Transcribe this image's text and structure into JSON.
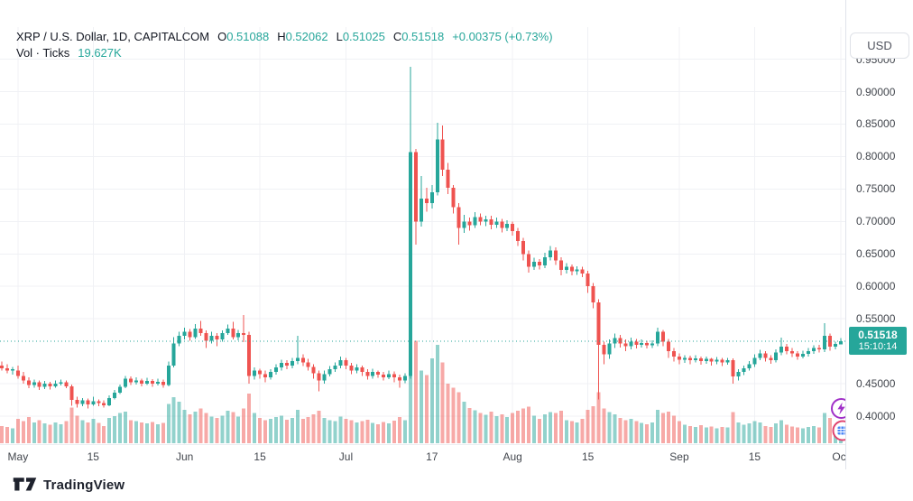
{
  "header": {
    "symbol": "XRP / U.S. Dollar, 1D, CAPITALCOM",
    "ohlc": {
      "o_label": "O",
      "o": "0.51088",
      "h_label": "H",
      "h": "0.52062",
      "l_label": "L",
      "l": "0.51025",
      "c_label": "C",
      "c": "0.51518",
      "change": "+0.00375 (+0.73%)"
    },
    "volume_row": {
      "label": "Vol · Ticks",
      "value": "19.627K"
    }
  },
  "right_axis": {
    "currency_button": "USD",
    "price_labels": [
      {
        "value": 0.95,
        "label": "0.95000"
      },
      {
        "value": 0.9,
        "label": "0.90000"
      },
      {
        "value": 0.85,
        "label": "0.85000"
      },
      {
        "value": 0.8,
        "label": "0.80000"
      },
      {
        "value": 0.75,
        "label": "0.75000"
      },
      {
        "value": 0.7,
        "label": "0.70000"
      },
      {
        "value": 0.65,
        "label": "0.65000"
      },
      {
        "value": 0.6,
        "label": "0.60000"
      },
      {
        "value": 0.55,
        "label": "0.55000"
      },
      {
        "value": 0.45,
        "label": "0.45000"
      },
      {
        "value": 0.4,
        "label": "0.40000"
      }
    ],
    "badge": {
      "price": "0.51518",
      "time": "15:10:14"
    }
  },
  "time_axis": {
    "labels": [
      {
        "label": "May",
        "index": 3
      },
      {
        "label": "15",
        "index": 17
      },
      {
        "label": "Jun",
        "index": 34
      },
      {
        "label": "15",
        "index": 48
      },
      {
        "label": "Jul",
        "index": 64
      },
      {
        "label": "17",
        "index": 80
      },
      {
        "label": "Aug",
        "index": 95
      },
      {
        "label": "15",
        "index": 109
      },
      {
        "label": "Sep",
        "index": 126
      },
      {
        "label": "15",
        "index": 140
      },
      {
        "label": "Oct",
        "index": 156
      }
    ]
  },
  "footer": {
    "brand": "TradingView"
  },
  "colors": {
    "up": "#26a69a",
    "down": "#ef5350",
    "vol_up": "rgba(38,166,154,0.5)",
    "vol_down": "rgba(239,83,80,0.5)",
    "grid": "#f0f1f5",
    "axis_border": "#e0e3eb",
    "axis_text": "#42464d",
    "title_text": "#131722",
    "accent": "#26a69a",
    "badge_bg": "#26a69a",
    "bubble_flash": "#a030c8",
    "bubble_events_ring": "#e0426f",
    "bubble_events_fill": "#4a86f7"
  },
  "chart_data": {
    "type": "candlestick",
    "symbol": "XRP/USD",
    "interval": "1D",
    "exchange": "CAPITALCOM",
    "ylabel": "USD",
    "ylim": [
      0.357,
      1.0
    ],
    "x_range": "late Apr to early Oct, daily bars",
    "grid": true,
    "last_bar": {
      "open": 0.51088,
      "high": 0.52062,
      "low": 0.51025,
      "close": 0.51518,
      "change": 0.00375,
      "change_pct": 0.73,
      "volume": "19.627K",
      "time": "15:10:14"
    },
    "fields": [
      "open",
      "high",
      "low",
      "close",
      "volume_k"
    ],
    "candles": [
      [
        0.478,
        0.484,
        0.47,
        0.474,
        30
      ],
      [
        0.474,
        0.48,
        0.466,
        0.47,
        28
      ],
      [
        0.47,
        0.476,
        0.464,
        0.472,
        26
      ],
      [
        0.47,
        0.478,
        0.458,
        0.462,
        42
      ],
      [
        0.462,
        0.468,
        0.45,
        0.455,
        38
      ],
      [
        0.455,
        0.46,
        0.443,
        0.448,
        45
      ],
      [
        0.448,
        0.456,
        0.444,
        0.452,
        36
      ],
      [
        0.452,
        0.455,
        0.44,
        0.445,
        40
      ],
      [
        0.445,
        0.454,
        0.442,
        0.45,
        34
      ],
      [
        0.45,
        0.453,
        0.441,
        0.446,
        32
      ],
      [
        0.446,
        0.455,
        0.444,
        0.45,
        36
      ],
      [
        0.45,
        0.456,
        0.447,
        0.452,
        33
      ],
      [
        0.452,
        0.455,
        0.443,
        0.446,
        38
      ],
      [
        0.446,
        0.449,
        0.416,
        0.425,
        62
      ],
      [
        0.425,
        0.43,
        0.413,
        0.419,
        48
      ],
      [
        0.419,
        0.428,
        0.415,
        0.424,
        40
      ],
      [
        0.424,
        0.427,
        0.412,
        0.418,
        36
      ],
      [
        0.418,
        0.43,
        0.416,
        0.423,
        42
      ],
      [
        0.423,
        0.426,
        0.415,
        0.42,
        35
      ],
      [
        0.42,
        0.424,
        0.413,
        0.417,
        30
      ],
      [
        0.417,
        0.432,
        0.415,
        0.428,
        44
      ],
      [
        0.428,
        0.44,
        0.426,
        0.436,
        47
      ],
      [
        0.436,
        0.449,
        0.434,
        0.445,
        52
      ],
      [
        0.445,
        0.462,
        0.443,
        0.458,
        55
      ],
      [
        0.458,
        0.461,
        0.448,
        0.452,
        40
      ],
      [
        0.452,
        0.46,
        0.449,
        0.455,
        38
      ],
      [
        0.455,
        0.458,
        0.446,
        0.45,
        36
      ],
      [
        0.45,
        0.459,
        0.448,
        0.454,
        34
      ],
      [
        0.454,
        0.457,
        0.445,
        0.45,
        37
      ],
      [
        0.45,
        0.458,
        0.447,
        0.453,
        33
      ],
      [
        0.453,
        0.456,
        0.444,
        0.448,
        35
      ],
      [
        0.448,
        0.484,
        0.446,
        0.478,
        68
      ],
      [
        0.478,
        0.522,
        0.475,
        0.512,
        80
      ],
      [
        0.512,
        0.53,
        0.508,
        0.524,
        72
      ],
      [
        0.524,
        0.536,
        0.518,
        0.53,
        58
      ],
      [
        0.53,
        0.534,
        0.516,
        0.522,
        50
      ],
      [
        0.522,
        0.542,
        0.519,
        0.535,
        55
      ],
      [
        0.535,
        0.547,
        0.524,
        0.528,
        60
      ],
      [
        0.528,
        0.532,
        0.505,
        0.516,
        52
      ],
      [
        0.516,
        0.53,
        0.512,
        0.524,
        46
      ],
      [
        0.524,
        0.528,
        0.508,
        0.518,
        44
      ],
      [
        0.518,
        0.532,
        0.515,
        0.528,
        48
      ],
      [
        0.528,
        0.541,
        0.525,
        0.535,
        56
      ],
      [
        0.535,
        0.545,
        0.518,
        0.522,
        54
      ],
      [
        0.522,
        0.533,
        0.517,
        0.528,
        46
      ],
      [
        0.528,
        0.556,
        0.514,
        0.525,
        60
      ],
      [
        0.525,
        0.53,
        0.45,
        0.462,
        86
      ],
      [
        0.462,
        0.475,
        0.456,
        0.47,
        52
      ],
      [
        0.47,
        0.473,
        0.458,
        0.465,
        44
      ],
      [
        0.465,
        0.47,
        0.452,
        0.46,
        40
      ],
      [
        0.46,
        0.472,
        0.456,
        0.468,
        42
      ],
      [
        0.468,
        0.48,
        0.464,
        0.475,
        45
      ],
      [
        0.475,
        0.487,
        0.47,
        0.482,
        48
      ],
      [
        0.482,
        0.486,
        0.472,
        0.478,
        41
      ],
      [
        0.478,
        0.49,
        0.474,
        0.485,
        44
      ],
      [
        0.485,
        0.524,
        0.48,
        0.49,
        58
      ],
      [
        0.49,
        0.495,
        0.477,
        0.483,
        42
      ],
      [
        0.483,
        0.488,
        0.47,
        0.476,
        45
      ],
      [
        0.476,
        0.48,
        0.458,
        0.466,
        50
      ],
      [
        0.466,
        0.47,
        0.438,
        0.455,
        56
      ],
      [
        0.455,
        0.47,
        0.45,
        0.465,
        44
      ],
      [
        0.465,
        0.477,
        0.461,
        0.472,
        40
      ],
      [
        0.472,
        0.483,
        0.468,
        0.478,
        38
      ],
      [
        0.478,
        0.492,
        0.474,
        0.486,
        46
      ],
      [
        0.486,
        0.49,
        0.472,
        0.478,
        42
      ],
      [
        0.478,
        0.482,
        0.465,
        0.47,
        40
      ],
      [
        0.47,
        0.48,
        0.466,
        0.475,
        36
      ],
      [
        0.475,
        0.478,
        0.462,
        0.468,
        38
      ],
      [
        0.468,
        0.472,
        0.456,
        0.462,
        41
      ],
      [
        0.462,
        0.473,
        0.458,
        0.468,
        35
      ],
      [
        0.468,
        0.47,
        0.459,
        0.464,
        33
      ],
      [
        0.464,
        0.468,
        0.455,
        0.46,
        37
      ],
      [
        0.46,
        0.47,
        0.457,
        0.465,
        34
      ],
      [
        0.465,
        0.469,
        0.452,
        0.46,
        39
      ],
      [
        0.46,
        0.464,
        0.444,
        0.455,
        45
      ],
      [
        0.455,
        0.466,
        0.451,
        0.462,
        40
      ],
      [
        0.462,
        0.938,
        0.458,
        0.807,
        170
      ],
      [
        0.807,
        0.812,
        0.664,
        0.7,
        177
      ],
      [
        0.7,
        0.77,
        0.692,
        0.735,
        126
      ],
      [
        0.735,
        0.752,
        0.715,
        0.728,
        118
      ],
      [
        0.728,
        0.756,
        0.72,
        0.745,
        147
      ],
      [
        0.745,
        0.852,
        0.74,
        0.826,
        170
      ],
      [
        0.826,
        0.848,
        0.77,
        0.78,
        140
      ],
      [
        0.78,
        0.79,
        0.742,
        0.752,
        103
      ],
      [
        0.752,
        0.756,
        0.712,
        0.722,
        96
      ],
      [
        0.722,
        0.728,
        0.664,
        0.69,
        88
      ],
      [
        0.69,
        0.71,
        0.682,
        0.7,
        72
      ],
      [
        0.7,
        0.706,
        0.686,
        0.694,
        61
      ],
      [
        0.694,
        0.714,
        0.69,
        0.707,
        57
      ],
      [
        0.707,
        0.712,
        0.694,
        0.7,
        52
      ],
      [
        0.7,
        0.709,
        0.693,
        0.703,
        49
      ],
      [
        0.703,
        0.709,
        0.688,
        0.695,
        55
      ],
      [
        0.695,
        0.706,
        0.69,
        0.7,
        47
      ],
      [
        0.7,
        0.704,
        0.683,
        0.69,
        50
      ],
      [
        0.69,
        0.702,
        0.685,
        0.696,
        45
      ],
      [
        0.696,
        0.7,
        0.678,
        0.685,
        52
      ],
      [
        0.685,
        0.69,
        0.662,
        0.67,
        56
      ],
      [
        0.67,
        0.675,
        0.64,
        0.65,
        60
      ],
      [
        0.65,
        0.655,
        0.621,
        0.63,
        63
      ],
      [
        0.63,
        0.644,
        0.625,
        0.638,
        48
      ],
      [
        0.638,
        0.642,
        0.626,
        0.632,
        42
      ],
      [
        0.632,
        0.652,
        0.628,
        0.645,
        50
      ],
      [
        0.645,
        0.662,
        0.64,
        0.655,
        54
      ],
      [
        0.655,
        0.66,
        0.633,
        0.64,
        52
      ],
      [
        0.64,
        0.645,
        0.617,
        0.625,
        56
      ],
      [
        0.625,
        0.636,
        0.62,
        0.63,
        40
      ],
      [
        0.63,
        0.634,
        0.617,
        0.623,
        38
      ],
      [
        0.623,
        0.631,
        0.618,
        0.626,
        36
      ],
      [
        0.626,
        0.63,
        0.614,
        0.62,
        42
      ],
      [
        0.62,
        0.624,
        0.59,
        0.6,
        58
      ],
      [
        0.6,
        0.605,
        0.566,
        0.575,
        64
      ],
      [
        0.575,
        0.58,
        0.426,
        0.51,
        88
      ],
      [
        0.51,
        0.515,
        0.48,
        0.495,
        60
      ],
      [
        0.495,
        0.518,
        0.488,
        0.512,
        54
      ],
      [
        0.512,
        0.527,
        0.505,
        0.52,
        50
      ],
      [
        0.52,
        0.525,
        0.506,
        0.512,
        44
      ],
      [
        0.512,
        0.518,
        0.5,
        0.508,
        40
      ],
      [
        0.508,
        0.521,
        0.503,
        0.515,
        42
      ],
      [
        0.515,
        0.519,
        0.504,
        0.51,
        38
      ],
      [
        0.51,
        0.518,
        0.506,
        0.513,
        35
      ],
      [
        0.513,
        0.516,
        0.504,
        0.509,
        33
      ],
      [
        0.509,
        0.517,
        0.505,
        0.512,
        36
      ],
      [
        0.512,
        0.536,
        0.508,
        0.53,
        58
      ],
      [
        0.53,
        0.533,
        0.508,
        0.515,
        52
      ],
      [
        0.515,
        0.519,
        0.49,
        0.5,
        55
      ],
      [
        0.5,
        0.505,
        0.484,
        0.492,
        48
      ],
      [
        0.492,
        0.497,
        0.48,
        0.487,
        38
      ],
      [
        0.487,
        0.494,
        0.482,
        0.49,
        32
      ],
      [
        0.49,
        0.493,
        0.48,
        0.486,
        30
      ],
      [
        0.486,
        0.494,
        0.483,
        0.489,
        28
      ],
      [
        0.489,
        0.492,
        0.479,
        0.485,
        31
      ],
      [
        0.485,
        0.492,
        0.481,
        0.488,
        27
      ],
      [
        0.488,
        0.49,
        0.478,
        0.484,
        29
      ],
      [
        0.484,
        0.491,
        0.48,
        0.487,
        26
      ],
      [
        0.487,
        0.49,
        0.477,
        0.483,
        28
      ],
      [
        0.483,
        0.49,
        0.479,
        0.486,
        27
      ],
      [
        0.486,
        0.489,
        0.45,
        0.461,
        54
      ],
      [
        0.461,
        0.472,
        0.455,
        0.468,
        36
      ],
      [
        0.468,
        0.478,
        0.463,
        0.474,
        32
      ],
      [
        0.474,
        0.485,
        0.47,
        0.48,
        34
      ],
      [
        0.48,
        0.495,
        0.476,
        0.49,
        38
      ],
      [
        0.49,
        0.502,
        0.486,
        0.497,
        36
      ],
      [
        0.497,
        0.5,
        0.484,
        0.49,
        30
      ],
      [
        0.49,
        0.494,
        0.481,
        0.486,
        28
      ],
      [
        0.486,
        0.503,
        0.483,
        0.498,
        34
      ],
      [
        0.498,
        0.521,
        0.494,
        0.507,
        40
      ],
      [
        0.507,
        0.511,
        0.495,
        0.5,
        32
      ],
      [
        0.5,
        0.505,
        0.491,
        0.497,
        29
      ],
      [
        0.497,
        0.5,
        0.487,
        0.492,
        27
      ],
      [
        0.492,
        0.501,
        0.489,
        0.496,
        26
      ],
      [
        0.496,
        0.505,
        0.492,
        0.5,
        28
      ],
      [
        0.5,
        0.509,
        0.496,
        0.505,
        30
      ],
      [
        0.505,
        0.51,
        0.498,
        0.503,
        27
      ],
      [
        0.503,
        0.543,
        0.499,
        0.524,
        52
      ],
      [
        0.524,
        0.527,
        0.501,
        0.507,
        44
      ],
      [
        0.507,
        0.515,
        0.503,
        0.511,
        30
      ],
      [
        0.51088,
        0.52062,
        0.51025,
        0.51518,
        19.627
      ]
    ]
  }
}
